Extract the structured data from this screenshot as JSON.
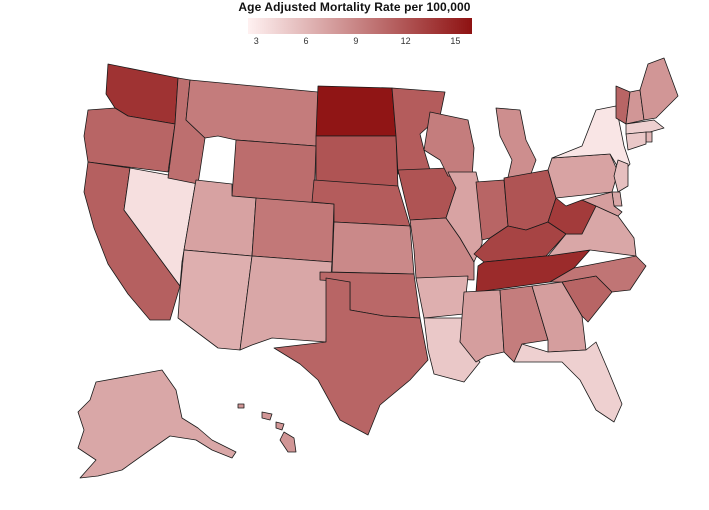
{
  "legend": {
    "title": "Age Adjusted Mortality Rate per 100,000",
    "min": 2.5,
    "max": 16,
    "ticks": [
      {
        "value": 3,
        "label": "3"
      },
      {
        "value": 6,
        "label": "6"
      },
      {
        "value": 9,
        "label": "9"
      },
      {
        "value": 12,
        "label": "12"
      },
      {
        "value": 15,
        "label": "15"
      }
    ],
    "color_low": "#fff1f1",
    "color_high": "#8e1212"
  },
  "states": {
    "WA": 14.0,
    "OR": 11.0,
    "CA": 11.3,
    "NV": 3.6,
    "ID": 10.4,
    "MT": 9.6,
    "WY": 10.5,
    "UT": 7.3,
    "AZ": 6.5,
    "NM": 7.0,
    "CO": 9.8,
    "ND": 15.8,
    "SD": 12.0,
    "NE": 11.5,
    "KS": 8.8,
    "OK": 10.8,
    "TX": 11.0,
    "MN": 11.5,
    "IA": 12.0,
    "MO": 9.0,
    "AR": 6.5,
    "LA": 5.0,
    "WI": 9.5,
    "IL": 7.2,
    "MI": 8.5,
    "IN": 11.0,
    "OH": 12.0,
    "KY": 13.0,
    "TN": 14.5,
    "MS": 7.5,
    "AL": 9.5,
    "GA": 7.5,
    "FL": 4.5,
    "SC": 11.0,
    "NC": 10.0,
    "VA": 7.0,
    "WV": 13.5,
    "PA": 7.2,
    "NY": 3.2,
    "VT": 11.0,
    "NH": 8.0,
    "ME": 8.0,
    "MA": 4.5,
    "CT": 5.0,
    "RI": 6.0,
    "NJ": 5.5,
    "DE": 7.0,
    "MD": 7.5,
    "AK": 7.0,
    "HI": 8.0
  }
}
